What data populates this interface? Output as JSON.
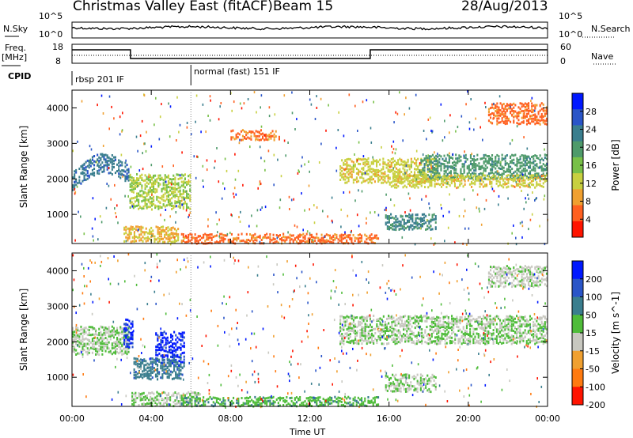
{
  "header": {
    "station": "Christmas Valley East (fitACF)",
    "beam": "Beam 15",
    "date": "28/Aug/2013"
  },
  "strip": {
    "nsky_label": "N.Sky",
    "nsearch_label": "N.Search",
    "noise_ticks": [
      "10^5",
      "10^0"
    ],
    "freq_label_line1": "Freq.",
    "freq_label_line2": "[MHz]",
    "freq_ticks": [
      "18",
      "8"
    ],
    "nave_label": "Nave",
    "nave_ticks": [
      "60",
      "0"
    ],
    "cpid_label": "CPID",
    "cpid_modes": [
      {
        "label": "rbsp 201 IF",
        "start_hour": 0,
        "end_hour": 6
      },
      {
        "label": "normal (fast) 151 IF",
        "start_hour": 6,
        "end_hour": 24
      }
    ]
  },
  "chart_data": [
    {
      "type": "heatmap",
      "name": "power-panel",
      "ylabel": "Slant Range [km]",
      "ylim": [
        180,
        4500
      ],
      "yticks": [
        1000,
        2000,
        3000,
        4000
      ],
      "xlim": [
        0,
        24
      ],
      "colorbar": {
        "label": "Power [dB]",
        "range": [
          0,
          32
        ],
        "ticks": [
          4,
          8,
          12,
          16,
          20,
          24,
          28
        ],
        "colors": [
          "#0018ff",
          "#2a55c8",
          "#3a7e8e",
          "#4e9a6a",
          "#78c048",
          "#c8d040",
          "#f0a030",
          "#ff6020",
          "#ff1400"
        ]
      },
      "regions": [
        {
          "x0": 0.0,
          "x1": 2.9,
          "ycenter": 2000,
          "halfwidth": 280,
          "value": 24,
          "trend": "rising-to-2600"
        },
        {
          "x0": 2.9,
          "x1": 6.0,
          "ycenter": 1700,
          "halfwidth": 500,
          "value": 14
        },
        {
          "x0": 2.6,
          "x1": 5.4,
          "ycenter": 500,
          "halfwidth": 220,
          "value": 10
        },
        {
          "x0": 5.5,
          "x1": 15.5,
          "ycenter": 380,
          "halfwidth": 140,
          "value": 6
        },
        {
          "x0": 8.0,
          "x1": 10.5,
          "ycenter": 3300,
          "halfwidth": 150,
          "value": 6
        },
        {
          "x0": 13.5,
          "x1": 18.5,
          "ycenter": 2300,
          "halfwidth": 350,
          "value": 12
        },
        {
          "x0": 15.8,
          "x1": 18.4,
          "ycenter": 850,
          "halfwidth": 220,
          "value": 22
        },
        {
          "x0": 17.5,
          "x1": 24.0,
          "ycenter": 2400,
          "halfwidth": 350,
          "value": 20
        },
        {
          "x0": 16.0,
          "x1": 24.0,
          "ycenter": 2000,
          "halfwidth": 180,
          "value": 12
        },
        {
          "x0": 21.0,
          "x1": 24.0,
          "ycenter": 3900,
          "halfwidth": 300,
          "value": 6
        }
      ]
    },
    {
      "type": "heatmap",
      "name": "velocity-panel",
      "ylabel": "Slant Range [km]",
      "ylim": [
        180,
        4500
      ],
      "yticks": [
        1000,
        2000,
        3000,
        4000
      ],
      "xlim": [
        0,
        24
      ],
      "colorbar": {
        "label": "Velocity [m s^-1]",
        "range": [
          -250,
          250
        ],
        "ticks": [
          200,
          100,
          50,
          15,
          -15,
          -50,
          -100,
          -200
        ],
        "colors": [
          "#0018ff",
          "#2a55c8",
          "#3a7e8e",
          "#4fbc3a",
          "#c8c8c0",
          "#f0a030",
          "#ff7a10",
          "#ff1400"
        ]
      },
      "regions": [
        {
          "x0": 0.0,
          "x1": 2.9,
          "ycenter": 2100,
          "halfwidth": 400,
          "value": 0
        },
        {
          "x0": 2.6,
          "x1": 3.1,
          "ycenter": 2300,
          "halfwidth": 400,
          "value": 200
        },
        {
          "x0": 4.2,
          "x1": 5.7,
          "ycenter": 1900,
          "halfwidth": 450,
          "value": 200
        },
        {
          "x0": 3.1,
          "x1": 5.7,
          "ycenter": 1300,
          "halfwidth": 300,
          "value": 100
        },
        {
          "x0": 3.0,
          "x1": 6.5,
          "ycenter": 450,
          "halfwidth": 200,
          "value": 0
        },
        {
          "x0": 5.5,
          "x1": 15.5,
          "ycenter": 380,
          "halfwidth": 140,
          "value": 50
        },
        {
          "x0": 13.5,
          "x1": 24.0,
          "ycenter": 2400,
          "halfwidth": 400,
          "value": 0
        },
        {
          "x0": 15.8,
          "x1": 18.4,
          "ycenter": 900,
          "halfwidth": 250,
          "value": 0
        },
        {
          "x0": 21.0,
          "x1": 24.0,
          "ycenter": 3900,
          "halfwidth": 300,
          "value": -15
        }
      ]
    }
  ],
  "xaxis": {
    "label": "Time UT",
    "ticks": [
      "00:00",
      "04:00",
      "08:00",
      "12:00",
      "16:00",
      "20:00",
      "00:00"
    ],
    "tick_hours": [
      0,
      4,
      8,
      12,
      16,
      20,
      24
    ]
  }
}
